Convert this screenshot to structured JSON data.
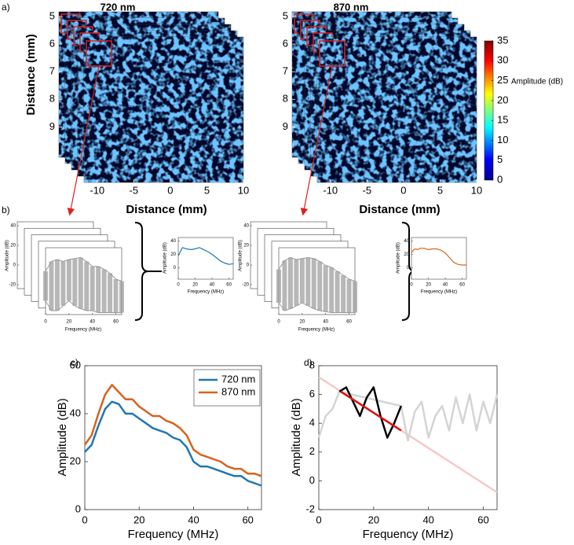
{
  "panel_labels": [
    "a)",
    "b)",
    "c)",
    "d)"
  ],
  "chart_data": [
    {
      "type": "image",
      "title": "720 nm",
      "xlabel": "Distance (mm)",
      "ylabel": "Distance (mm)",
      "xlim": [
        -11.8,
        10
      ],
      "ylim": [
        4.83,
        10.1
      ],
      "xticks": [
        -10,
        -5,
        0,
        5,
        10
      ],
      "yticks": [
        5,
        6,
        7,
        8,
        9
      ]
    },
    {
      "type": "image",
      "title": "870 nm",
      "xlabel": "Distance (mm)",
      "xlim": [
        -11.8,
        10
      ],
      "ylim": [
        4.83,
        10.1
      ],
      "xticks": [
        -10,
        -5,
        0,
        5,
        10
      ],
      "yticks": [
        5,
        6,
        7,
        8,
        9
      ]
    },
    {
      "type": "colorbar",
      "label": "Amplitude (dB)",
      "ylim": [
        0,
        35
      ],
      "yticks": [
        0,
        5,
        10,
        15,
        20,
        25,
        30,
        35
      ]
    },
    {
      "type": "spectra",
      "xlabel": "Frequency (MHz)",
      "ylabel": "Amplitude (dB)",
      "xlim": [
        0,
        65
      ],
      "ylim": [
        -24,
        44
      ],
      "xticks": [
        0,
        20,
        40,
        60
      ],
      "yticks": [
        -20,
        0,
        20,
        40
      ],
      "x": [
        0,
        5,
        10,
        15,
        20,
        25,
        30,
        35,
        40,
        45,
        50,
        55,
        60,
        65
      ],
      "series": [
        {
          "color": "#9a9a9a",
          "values": [
            20,
            30,
            32,
            30,
            32,
            33,
            34,
            30,
            25,
            25,
            22,
            18,
            12,
            10
          ]
        },
        {
          "color": "#9a9a9a",
          "values": [
            -10,
            -20,
            -20,
            -15,
            -10,
            -15,
            -18,
            -20,
            -20,
            -22,
            -22,
            -22,
            -22,
            -22
          ]
        }
      ]
    },
    {
      "type": "line",
      "xlabel": "Frequency (MHz)",
      "ylabel": "Amplitude (dB)",
      "xlim": [
        0,
        65
      ],
      "ylim": [
        -17,
        45
      ],
      "xticks": [
        0,
        20,
        40,
        60
      ],
      "yticks": [
        0,
        20,
        40
      ],
      "x": [
        0,
        2.5,
        5,
        7.5,
        10,
        15,
        20,
        25,
        30,
        35,
        40,
        45,
        50,
        55,
        60,
        65
      ],
      "series": [
        {
          "color": "#1f77b4",
          "values": [
            18,
            24,
            30,
            29,
            28,
            27,
            28,
            30,
            27,
            24,
            20,
            15,
            10,
            7,
            5,
            6
          ]
        }
      ]
    },
    {
      "type": "spectra",
      "xlabel": "Frequency (MHz)",
      "ylabel": "Amplitude (dB)",
      "xlim": [
        0,
        65
      ],
      "ylim": [
        -24,
        44
      ],
      "xticks": [
        0,
        20,
        40,
        60
      ],
      "yticks": [
        -20,
        0,
        20,
        40
      ],
      "x": [
        0,
        5,
        10,
        15,
        20,
        25,
        30,
        35,
        40,
        45,
        50,
        55,
        60,
        65
      ],
      "series": [
        {
          "color": "#9a9a9a",
          "values": [
            22,
            31,
            34,
            32,
            33,
            34,
            33,
            30,
            26,
            24,
            20,
            16,
            12,
            10
          ]
        },
        {
          "color": "#9a9a9a",
          "values": [
            -12,
            -20,
            -18,
            -15,
            -12,
            -15,
            -18,
            -20,
            -21,
            -22,
            -22,
            -22,
            -22,
            -22
          ]
        }
      ]
    },
    {
      "type": "line",
      "xlabel": "Frequency (MHz)",
      "ylabel": "Amplitude (dB)",
      "xlim": [
        0,
        65
      ],
      "ylim": [
        -17,
        45
      ],
      "xticks": [
        0,
        20,
        40,
        60
      ],
      "yticks": [
        0,
        20,
        40
      ],
      "x": [
        0,
        2.5,
        5,
        7.5,
        10,
        15,
        20,
        25,
        30,
        35,
        40,
        45,
        50,
        55,
        60,
        65
      ],
      "series": [
        {
          "color": "#d2691e",
          "values": [
            22,
            27,
            28,
            27,
            29,
            29,
            27,
            28,
            28,
            26,
            22,
            15,
            8,
            5,
            4,
            4
          ]
        }
      ]
    },
    {
      "type": "line",
      "xlabel": "Frequency (MHz)",
      "ylabel": "Amplitude (dB)",
      "xlim": [
        0,
        65
      ],
      "ylim": [
        0,
        60
      ],
      "xticks": [
        0,
        20,
        40,
        60
      ],
      "yticks": [
        0,
        20,
        40,
        60
      ],
      "x": [
        0,
        2.5,
        5,
        7.5,
        10,
        12.5,
        15,
        17.5,
        20,
        22.5,
        25,
        27.5,
        30,
        32.5,
        35,
        37.5,
        40,
        42.5,
        45,
        47.5,
        50,
        52.5,
        55,
        57.5,
        60,
        62.5,
        65
      ],
      "legend": "upper right",
      "series": [
        {
          "name": "720 nm",
          "color": "#1f77b4",
          "values": [
            24,
            27,
            35,
            42,
            45,
            44,
            40,
            40,
            38,
            36,
            34,
            33,
            32,
            30,
            29,
            26,
            20,
            18,
            18,
            17,
            16,
            15,
            14,
            14,
            12,
            11,
            10
          ]
        },
        {
          "name": "870 nm",
          "color": "#d9611f",
          "values": [
            27,
            31,
            40,
            48,
            52,
            49,
            46,
            46,
            43,
            41,
            39,
            39,
            37,
            36,
            34,
            31,
            25,
            23,
            22,
            21,
            20,
            18,
            17,
            17,
            15,
            15,
            14
          ]
        }
      ]
    },
    {
      "type": "line",
      "xlabel": "Frequency (MHz)",
      "ylabel": "Amplitude (dB)",
      "xlim": [
        0,
        65
      ],
      "ylim": [
        -2,
        8
      ],
      "xticks": [
        0,
        20,
        40,
        60
      ],
      "yticks": [
        -2,
        0,
        2,
        4,
        6,
        8
      ],
      "series": [
        {
          "color": "#f6c8c8",
          "x": [
            0,
            65
          ],
          "values": [
            7.2,
            -0.8
          ]
        },
        {
          "color": "#d4d4d4",
          "x": [
            0,
            2.5,
            5,
            7.5,
            30,
            32.5,
            35,
            37.5,
            40,
            42.5,
            45,
            47.5,
            50,
            52.5,
            55,
            57.5,
            60,
            62.5,
            65
          ],
          "values": [
            3,
            4.5,
            5,
            6.2,
            5.2,
            2.8,
            4.8,
            5.5,
            3,
            4.5,
            5.2,
            3.5,
            5.8,
            4,
            6,
            3.5,
            5.5,
            4,
            6
          ]
        },
        {
          "color": "#000000",
          "x": [
            7.5,
            10,
            12.5,
            15,
            17.5,
            20,
            22.5,
            25,
            27.5,
            30
          ],
          "values": [
            6.2,
            6.5,
            5.5,
            4.5,
            5.8,
            6.5,
            4.5,
            3,
            4,
            5.2
          ]
        },
        {
          "color": "#e01010",
          "x": [
            8,
            30
          ],
          "values": [
            6.2,
            3.5
          ]
        }
      ]
    }
  ]
}
